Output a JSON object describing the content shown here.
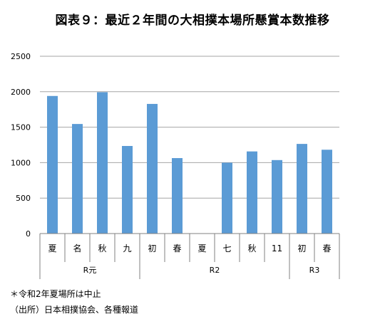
{
  "chart_data": {
    "type": "bar",
    "title": "図表９：最近２年間の大相撲本場所懸賞本数推移",
    "categories": [
      "夏",
      "名",
      "秋",
      "九",
      "初",
      "春",
      "夏",
      "七",
      "秋",
      "11",
      "初",
      "春"
    ],
    "groups": [
      {
        "label": "R元",
        "start": 0,
        "end": 3
      },
      {
        "label": "R2",
        "start": 4,
        "end": 9
      },
      {
        "label": "R3",
        "start": 10,
        "end": 11
      }
    ],
    "series": [
      {
        "values": [
          1940,
          1545,
          1993,
          1235,
          1828,
          1064,
          0,
          999,
          1158,
          1036,
          1264,
          1182
        ]
      }
    ],
    "ylim": [
      0,
      2500
    ],
    "yticks": [
      0,
      500,
      1000,
      1500,
      2000,
      2500
    ],
    "grid": true,
    "legend": "none",
    "colors": {
      "bar": "#5b9bd5",
      "grid": "#a6a6a6",
      "axis": "#808080"
    }
  },
  "notes": [
    "＊令和2年夏場所は中止",
    "（出所）日本相撲協会、各種報道"
  ]
}
